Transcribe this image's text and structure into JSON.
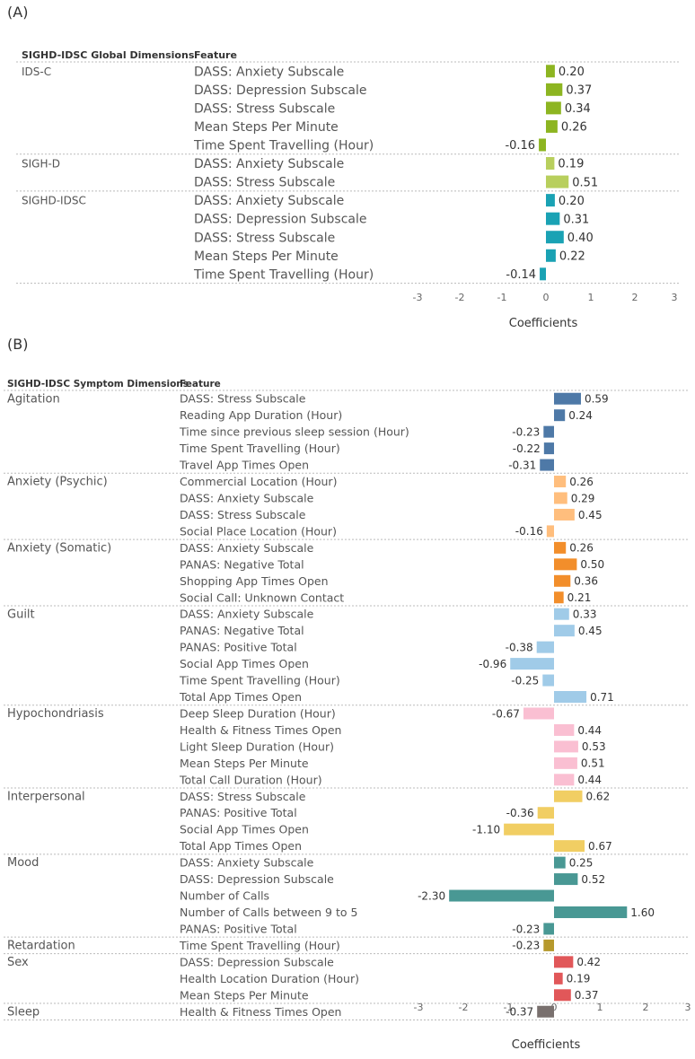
{
  "panel_a": {
    "panel_label": "(A)",
    "header_dimension": "SIGHD-IDSC Global Dimensions",
    "header_feature": "Feature",
    "x_axis_title": "Coefficients",
    "x_ticks": [
      "-3",
      "-2",
      "-1",
      "0",
      "1",
      "2",
      "3"
    ]
  },
  "panel_b": {
    "panel_label": "(B)",
    "header_dimension": "SIGHD-IDSC Symptom Dimensions",
    "header_feature": "Feature",
    "x_axis_title": "Coefficients",
    "x_ticks": [
      "-3",
      "-2",
      "-1",
      "0",
      "1",
      "2",
      "3"
    ]
  },
  "chart_data": [
    {
      "type": "bar",
      "orientation": "horizontal",
      "panel": "A",
      "xlabel": "Coefficients",
      "xlim": [
        -3,
        3
      ],
      "groups": [
        {
          "name": "IDS-C",
          "color": "#8db521",
          "features": [
            {
              "label": "DASS: Anxiety Subscale",
              "value": 0.2,
              "text": "0.20"
            },
            {
              "label": "DASS: Depression Subscale",
              "value": 0.37,
              "text": "0.37"
            },
            {
              "label": "DASS: Stress Subscale",
              "value": 0.34,
              "text": "0.34"
            },
            {
              "label": "Mean Steps Per Minute",
              "value": 0.26,
              "text": "0.26"
            },
            {
              "label": "Time Spent Travelling (Hour)",
              "value": -0.16,
              "text": "-0.16"
            }
          ]
        },
        {
          "name": "SIGH-D",
          "color": "#b8cf5d",
          "features": [
            {
              "label": "DASS: Anxiety Subscale",
              "value": 0.19,
              "text": "0.19"
            },
            {
              "label": "DASS: Stress Subscale",
              "value": 0.51,
              "text": "0.51"
            }
          ]
        },
        {
          "name": "SIGHD-IDSC",
          "color": "#1aa2b4",
          "features": [
            {
              "label": "DASS: Anxiety Subscale",
              "value": 0.2,
              "text": "0.20"
            },
            {
              "label": "DASS: Depression Subscale",
              "value": 0.31,
              "text": "0.31"
            },
            {
              "label": "DASS: Stress Subscale",
              "value": 0.4,
              "text": "0.40"
            },
            {
              "label": "Mean Steps Per Minute",
              "value": 0.22,
              "text": "0.22"
            },
            {
              "label": "Time Spent Travelling (Hour)",
              "value": -0.14,
              "text": "-0.14"
            }
          ]
        }
      ]
    },
    {
      "type": "bar",
      "orientation": "horizontal",
      "panel": "B",
      "xlabel": "Coefficients",
      "xlim": [
        -3,
        3
      ],
      "groups": [
        {
          "name": "Agitation",
          "color": "#4e79a7",
          "features": [
            {
              "label": "DASS: Stress Subscale",
              "value": 0.59,
              "text": "0.59"
            },
            {
              "label": "Reading App Duration (Hour)",
              "value": 0.24,
              "text": "0.24"
            },
            {
              "label": "Time since previous sleep session (Hour)",
              "value": -0.23,
              "text": "-0.23"
            },
            {
              "label": "Time Spent Travelling (Hour)",
              "value": -0.22,
              "text": "-0.22"
            },
            {
              "label": "Travel App Times Open",
              "value": -0.31,
              "text": "-0.31"
            }
          ]
        },
        {
          "name": "Anxiety (Psychic)",
          "color": "#ffbe7d",
          "features": [
            {
              "label": "Commercial Location (Hour)",
              "value": 0.26,
              "text": "0.26"
            },
            {
              "label": "DASS: Anxiety Subscale",
              "value": 0.29,
              "text": "0.29"
            },
            {
              "label": "DASS: Stress Subscale",
              "value": 0.45,
              "text": "0.45"
            },
            {
              "label": "Social Place Location (Hour)",
              "value": -0.16,
              "text": "-0.16"
            }
          ]
        },
        {
          "name": "Anxiety (Somatic)",
          "color": "#f28e2b",
          "features": [
            {
              "label": "DASS: Anxiety Subscale",
              "value": 0.26,
              "text": "0.26"
            },
            {
              "label": "PANAS: Negative Total",
              "value": 0.5,
              "text": "0.50"
            },
            {
              "label": "Shopping App Times Open",
              "value": 0.36,
              "text": "0.36"
            },
            {
              "label": "Social Call: Unknown Contact",
              "value": 0.21,
              "text": "0.21"
            }
          ]
        },
        {
          "name": "Guilt",
          "color": "#a0cbe8",
          "features": [
            {
              "label": "DASS: Anxiety Subscale",
              "value": 0.33,
              "text": "0.33"
            },
            {
              "label": "PANAS: Negative Total",
              "value": 0.45,
              "text": "0.45"
            },
            {
              "label": "PANAS: Positive Total",
              "value": -0.38,
              "text": "-0.38"
            },
            {
              "label": "Social App Times Open",
              "value": -0.96,
              "text": "-0.96"
            },
            {
              "label": "Time Spent Travelling (Hour)",
              "value": -0.25,
              "text": "-0.25"
            },
            {
              "label": "Total App Times Open",
              "value": 0.71,
              "text": "0.71"
            }
          ]
        },
        {
          "name": "Hypochondriasis",
          "color": "#fabfd2",
          "features": [
            {
              "label": "Deep Sleep Duration (Hour)",
              "value": -0.67,
              "text": "-0.67"
            },
            {
              "label": "Health & Fitness Times Open",
              "value": 0.44,
              "text": "0.44"
            },
            {
              "label": "Light Sleep Duration (Hour)",
              "value": 0.53,
              "text": "0.53"
            },
            {
              "label": "Mean Steps Per Minute",
              "value": 0.51,
              "text": "0.51"
            },
            {
              "label": "Total Call Duration (Hour)",
              "value": 0.44,
              "text": "0.44"
            }
          ]
        },
        {
          "name": "Interpersonal",
          "color": "#f1ce63",
          "features": [
            {
              "label": "DASS: Stress Subscale",
              "value": 0.62,
              "text": "0.62"
            },
            {
              "label": "PANAS: Positive Total",
              "value": -0.36,
              "text": "-0.36"
            },
            {
              "label": "Social App Times Open",
              "value": -1.1,
              "text": "-1.10"
            },
            {
              "label": "Total App Times Open",
              "value": 0.67,
              "text": "0.67"
            }
          ]
        },
        {
          "name": "Mood",
          "color": "#499894",
          "features": [
            {
              "label": "DASS: Anxiety Subscale",
              "value": 0.25,
              "text": "0.25"
            },
            {
              "label": "DASS: Depression Subscale",
              "value": 0.52,
              "text": "0.52"
            },
            {
              "label": "Number of Calls",
              "value": -2.3,
              "text": "-2.30"
            },
            {
              "label": "Number of Calls between 9 to 5",
              "value": 1.6,
              "text": "1.60"
            },
            {
              "label": "PANAS: Positive Total",
              "value": -0.23,
              "text": "-0.23"
            }
          ]
        },
        {
          "name": "Retardation",
          "color": "#b6992d",
          "features": [
            {
              "label": "Time Spent Travelling (Hour)",
              "value": -0.23,
              "text": "-0.23"
            }
          ]
        },
        {
          "name": "Sex",
          "color": "#e15759",
          "features": [
            {
              "label": "DASS: Depression Subscale",
              "value": 0.42,
              "text": "0.42"
            },
            {
              "label": "Health Location Duration (Hour)",
              "value": 0.19,
              "text": "0.19"
            },
            {
              "label": "Mean Steps Per Minute",
              "value": 0.37,
              "text": "0.37"
            }
          ]
        },
        {
          "name": "Sleep",
          "color": "#79706e",
          "features": [
            {
              "label": "Health & Fitness Times Open",
              "value": -0.37,
              "text": "-0.37"
            }
          ]
        }
      ]
    }
  ]
}
